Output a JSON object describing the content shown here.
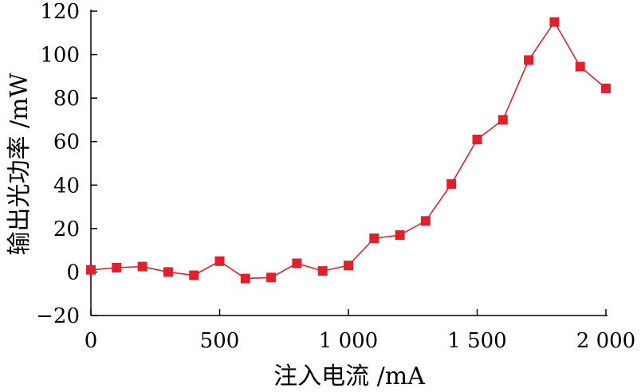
{
  "chart_data": {
    "type": "line",
    "xlabel": "注入电流 /mA",
    "ylabel": "输出光功率 /mW",
    "xlim": [
      0,
      2000
    ],
    "ylim": [
      -20,
      120
    ],
    "xticks": [
      0,
      500,
      1000,
      1500,
      2000
    ],
    "xtick_labels": [
      "0",
      "500",
      "1 000",
      "1 500",
      "2 000"
    ],
    "yticks": [
      -20,
      0,
      20,
      40,
      60,
      80,
      100,
      120
    ],
    "ytick_labels": [
      "−20",
      "0",
      "20",
      "40",
      "60",
      "80",
      "100",
      "120"
    ],
    "grid": false,
    "series": [
      {
        "color": "#e0202a",
        "marker": "square",
        "x": [
          0,
          100,
          200,
          300,
          400,
          500,
          600,
          700,
          800,
          900,
          1000,
          1100,
          1200,
          1300,
          1400,
          1500,
          1600,
          1700,
          1800,
          1900,
          2000
        ],
        "y": [
          1,
          2,
          2.5,
          0,
          -1.5,
          5,
          -3,
          -2.5,
          4,
          0.5,
          3,
          15.5,
          17,
          23.5,
          40.5,
          61,
          70,
          97.5,
          115,
          94.5,
          84.5
        ]
      }
    ]
  }
}
